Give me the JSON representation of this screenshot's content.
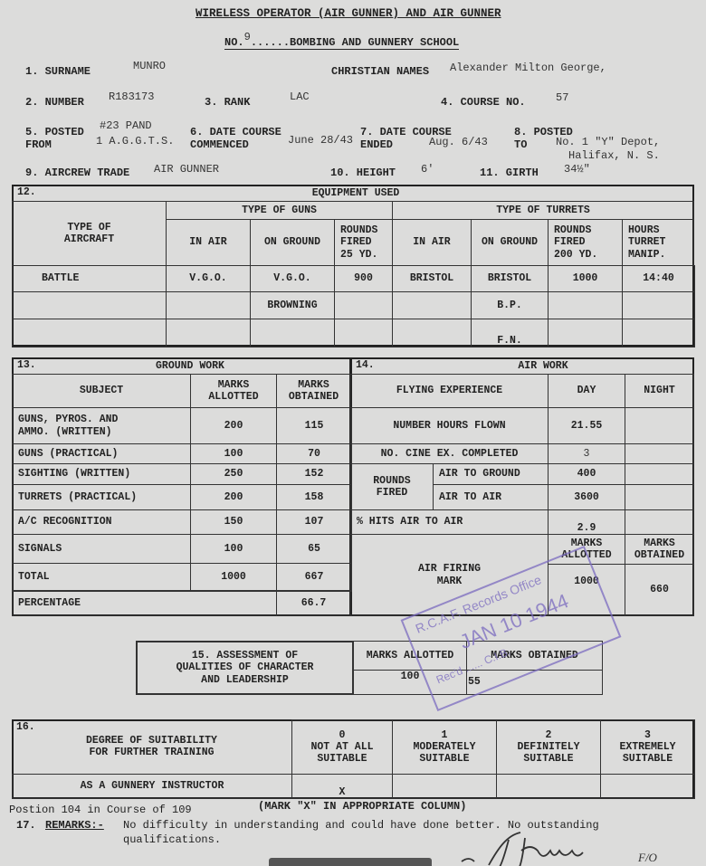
{
  "header": {
    "title": "WIRELESS OPERATOR (AIR GUNNER) AND AIR GUNNER",
    "school_prefix": "NO.",
    "school_no": "9",
    "school_suffix": "BOMBING AND GUNNERY SCHOOL"
  },
  "personal": {
    "surname_label": "1. SURNAME",
    "surname": "MUNRO",
    "christian_label": "CHRISTIAN NAMES",
    "christian": "Alexander Milton George,",
    "number_label": "2. NUMBER",
    "number": "R183173",
    "rank_label": "3. RANK",
    "rank": "LAC",
    "course_label": "4. COURSE NO.",
    "course": "57",
    "posted_from_label": "5. POSTED\nFROM",
    "posted_from_1": "#23 PAND",
    "posted_from_2": "1 A.G.G.T.S.",
    "commenced_label": "6. DATE COURSE\nCOMMENCED",
    "commenced": "June 28/43",
    "ended_label": "7. DATE COURSE\nENDED",
    "ended": "Aug. 6/43",
    "posted_to_label": "8. POSTED\nTO",
    "posted_to_1": "No. 1 \"Y\" Depot,",
    "posted_to_2": "Halifax, N. S.",
    "trade_label": "9. AIRCREW TRADE",
    "trade": "AIR GUNNER",
    "height_label": "10. HEIGHT",
    "height": "6'",
    "girth_label": "11. GIRTH",
    "girth": "34½\""
  },
  "equipment": {
    "num": "12.",
    "title": "EQUIPMENT USED",
    "guns_header": "TYPE OF GUNS",
    "turrets_header": "TYPE OF TURRETS",
    "columns": [
      "TYPE OF\nAIRCRAFT",
      "IN AIR",
      "ON GROUND",
      "ROUNDS\nFIRED\n25 YD.",
      "IN AIR",
      "ON GROUND",
      "ROUNDS\nFIRED\n200 YD.",
      "HOURS\nTURRET\nMANIP."
    ],
    "rows": [
      [
        "BATTLE",
        "V.G.O.",
        "V.G.O.",
        "900",
        "BRISTOL",
        "BRISTOL",
        "1000",
        "14:40"
      ],
      [
        "",
        "",
        "BROWNING",
        "",
        "",
        "B.P.",
        "",
        ""
      ],
      [
        "",
        "",
        "",
        "",
        "",
        "F.N.",
        "",
        ""
      ]
    ]
  },
  "ground": {
    "num": "13.",
    "title": "GROUND WORK",
    "headers": [
      "SUBJECT",
      "MARKS\nALLOTTED",
      "MARKS\nOBTAINED"
    ],
    "rows": [
      [
        "GUNS, PYROS. AND\nAMMO. (WRITTEN)",
        "200",
        "115"
      ],
      [
        "GUNS (PRACTICAL)",
        "100",
        "70"
      ],
      [
        "SIGHTING (WRITTEN)",
        "250",
        "152"
      ],
      [
        "TURRETS (PRACTICAL)",
        "200",
        "158"
      ],
      [
        "A/C RECOGNITION",
        "150",
        "107"
      ],
      [
        "SIGNALS",
        "100",
        "65"
      ],
      [
        "TOTAL",
        "1000",
        "667"
      ]
    ],
    "percentage_label": "PERCENTAGE",
    "percentage": "66.7"
  },
  "air": {
    "num": "14.",
    "title": "AIR WORK",
    "headers": [
      "FLYING EXPERIENCE",
      "DAY",
      "NIGHT"
    ],
    "hours_label": "NUMBER HOURS FLOWN",
    "hours_day": "21.55",
    "cine_label": "NO. CINE EX. COMPLETED",
    "cine_day": "3",
    "rounds_label": "ROUNDS\nFIRED",
    "ground_label": "AIR TO GROUND",
    "ground_day": "400",
    "air_label": "AIR TO AIR",
    "air_day": "3600",
    "hits_label": "% HITS AIR TO AIR",
    "hits_day": "2.9",
    "mark_label": "AIR FIRING\nMARK",
    "allotted_label": "MARKS\nALLOTTED",
    "obtained_label": "MARKS\nOBTAINED",
    "allotted": "1000",
    "obtained": "660"
  },
  "assessment": {
    "label": "15.  ASSESSMENT OF\nQUALITIES OF CHARACTER\nAND LEADERSHIP",
    "allotted_label": "MARKS ALLOTTED",
    "obtained_label": "MARKS OBTAINED",
    "allotted": "100",
    "obtained": "55"
  },
  "suitability": {
    "num": "16.",
    "label": "DEGREE OF SUITABILITY\nFOR FURTHER TRAINING",
    "options": [
      {
        "n": "0",
        "t": "NOT AT ALL\nSUITABLE"
      },
      {
        "n": "1",
        "t": "MODERATELY\nSUITABLE"
      },
      {
        "n": "2",
        "t": "DEFINITELY\nSUITABLE"
      },
      {
        "n": "3",
        "t": "EXTREMELY\nSUITABLE"
      }
    ],
    "row_label": "AS A GUNNERY INSTRUCTOR",
    "mark": "X",
    "note": "(MARK \"X\" IN APPROPRIATE COLUMN)"
  },
  "footer": {
    "position": "Postion 104 in Course of 109",
    "remarks_num": "17.",
    "remarks_label": "REMARKS:-",
    "remarks_1": "No difficulty in understanding and could have done better.  No outstanding",
    "remarks_2": "qualifications.",
    "signature_suffix": "F/O"
  },
  "stamp": {
    "line1": "R.C.A.F. Records Office",
    "line2": "JAN 10 1944",
    "line3": "Rec'd ...... C.I.B."
  }
}
